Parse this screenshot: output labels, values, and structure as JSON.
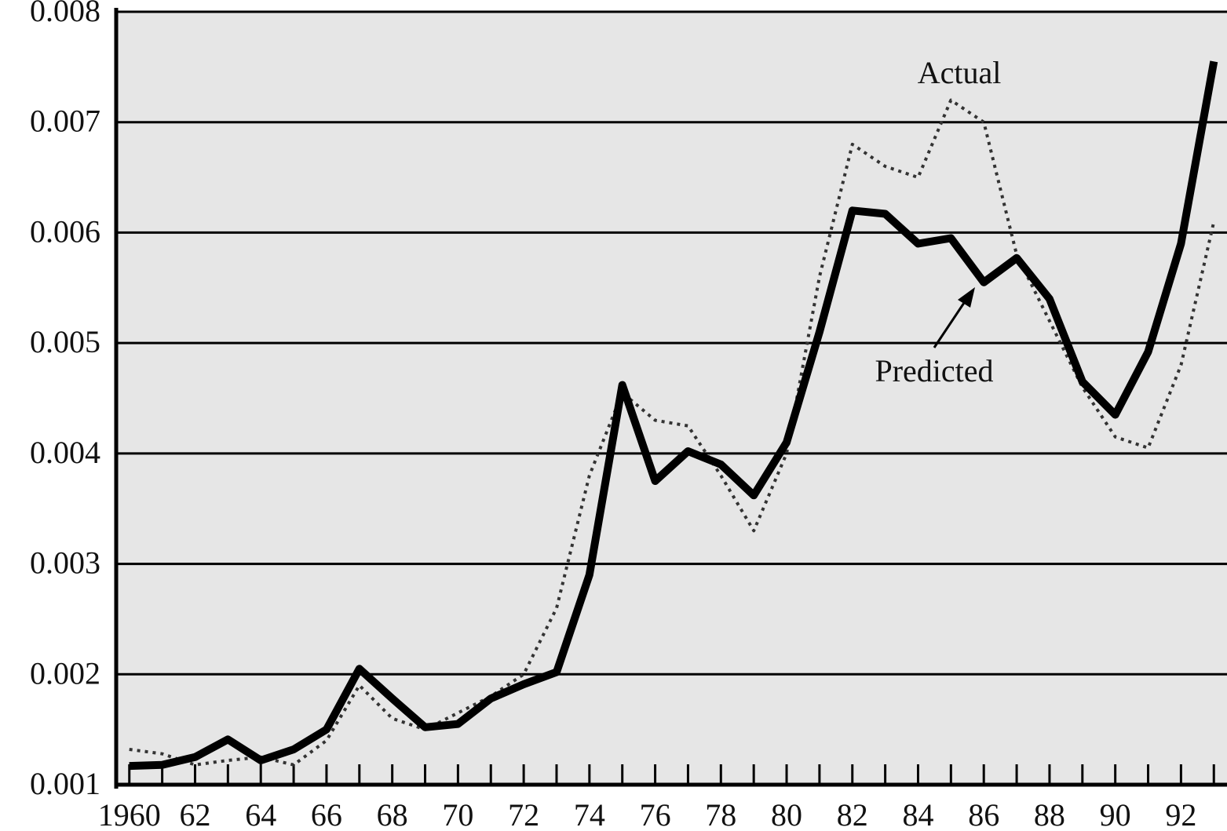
{
  "chart_data": {
    "type": "line",
    "x": [
      1960,
      1961,
      1962,
      1963,
      1964,
      1965,
      1966,
      1967,
      1968,
      1969,
      1970,
      1971,
      1972,
      1973,
      1974,
      1975,
      1976,
      1977,
      1978,
      1979,
      1980,
      1981,
      1982,
      1983,
      1984,
      1985,
      1986,
      1987,
      1988,
      1989,
      1990,
      1991,
      1992,
      1993
    ],
    "series": [
      {
        "name": "Actual",
        "style": "dotted",
        "values": [
          0.00132,
          0.00128,
          0.00118,
          0.00122,
          0.00125,
          0.00118,
          0.0014,
          0.0019,
          0.0016,
          0.0015,
          0.00165,
          0.0018,
          0.002,
          0.0026,
          0.0038,
          0.00455,
          0.0043,
          0.00425,
          0.0038,
          0.0033,
          0.004,
          0.0056,
          0.0068,
          0.0066,
          0.0065,
          0.0072,
          0.007,
          0.0058,
          0.0052,
          0.0046,
          0.00415,
          0.00405,
          0.0048,
          0.0061
        ]
      },
      {
        "name": "Predicted",
        "style": "solid",
        "values": [
          0.00117,
          0.00118,
          0.00125,
          0.00141,
          0.00122,
          0.00132,
          0.0015,
          0.00205,
          0.00178,
          0.00152,
          0.00155,
          0.00178,
          0.00191,
          0.00202,
          0.0029,
          0.00462,
          0.00375,
          0.00402,
          0.0039,
          0.00362,
          0.0041,
          0.0051,
          0.0062,
          0.00617,
          0.0059,
          0.00595,
          0.00555,
          0.00577,
          0.0054,
          0.00465,
          0.00435,
          0.00492,
          0.0059,
          0.00755
        ]
      }
    ],
    "xticks": [
      "1960",
      "62",
      "64",
      "66",
      "68",
      "70",
      "72",
      "74",
      "76",
      "78",
      "80",
      "82",
      "84",
      "86",
      "88",
      "90",
      "92"
    ],
    "xtick_values": [
      1960,
      1962,
      1964,
      1966,
      1968,
      1970,
      1972,
      1974,
      1976,
      1978,
      1980,
      1982,
      1984,
      1986,
      1988,
      1990,
      1992
    ],
    "yticks": [
      "0.001",
      "0.002",
      "0.003",
      "0.004",
      "0.005",
      "0.006",
      "0.007",
      "0.008"
    ],
    "ytick_values": [
      0.001,
      0.002,
      0.003,
      0.004,
      0.005,
      0.006,
      0.007,
      0.008
    ],
    "annotations": [
      {
        "text": "Actual",
        "series": "Actual"
      },
      {
        "text": "Predicted",
        "series": "Predicted",
        "arrow": true
      }
    ],
    "xlim": [
      1959.6,
      1993.4
    ],
    "ylim": [
      0.001,
      0.008
    ],
    "grid": "horizontal",
    "legend": "none",
    "colors": {
      "background": "#e6e6e6",
      "line": "#000000",
      "grid": "#000000",
      "dotted": "#333333"
    },
    "title": "",
    "xlabel": "",
    "ylabel": ""
  }
}
